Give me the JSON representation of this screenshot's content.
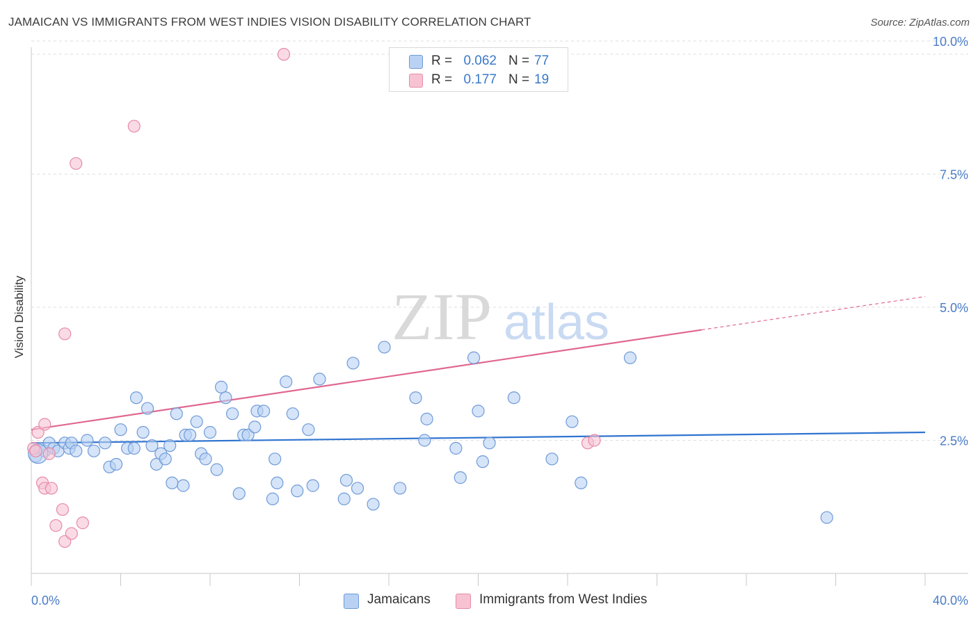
{
  "header": {
    "title": "JAMAICAN VS IMMIGRANTS FROM WEST INDIES VISION DISABILITY CORRELATION CHART",
    "source": "Source: ZipAtlas.com"
  },
  "watermark": {
    "zip": "ZIP",
    "atlas": "atlas"
  },
  "colors": {
    "blue_fill": "#b9d2f3",
    "blue_stroke": "#6f9ad8",
    "blue_line": "#2f74d0",
    "pink_fill": "#f7c3d3",
    "pink_stroke": "#e68aa7",
    "pink_line": "#e0678f",
    "grid": "#dedede",
    "tick_text": "#4a7cc7"
  },
  "legend": {
    "rows": [
      {
        "r_label": "R =",
        "r_value": "0.062",
        "n_label": "N =",
        "n_value": "77"
      },
      {
        "r_label": "R =",
        "r_value": "0.177",
        "n_label": "N =",
        "n_value": "19"
      }
    ]
  },
  "bottom_legend": {
    "series1": "Jamaicans",
    "series2": "Immigrants from West Indies"
  },
  "chart_data": {
    "type": "scatter",
    "title": "JAMAICAN VS IMMIGRANTS FROM WEST INDIES VISION DISABILITY CORRELATION CHART",
    "xlabel": "",
    "ylabel": "Vision Disability",
    "xlim": [
      0,
      40
    ],
    "ylim": [
      0,
      10.5
    ],
    "x_tick_labels": [
      "0.0%",
      "40.0%"
    ],
    "y_ticks": [
      2.5,
      5.0,
      7.5,
      10.0
    ],
    "y_tick_labels": [
      "2.5%",
      "5.0%",
      "7.5%",
      "10.0%"
    ],
    "grid": "horizontal dashed",
    "legend_placement": "top-center",
    "series": [
      {
        "name": "Jamaicans",
        "color": "#6f9ad8",
        "points": [
          [
            0.2,
            2.2
          ],
          [
            0.4,
            2.35
          ],
          [
            0.6,
            2.3
          ],
          [
            0.8,
            2.45
          ],
          [
            1.0,
            2.35
          ],
          [
            1.2,
            2.3
          ],
          [
            1.5,
            2.45
          ],
          [
            1.7,
            2.35
          ],
          [
            1.8,
            2.45
          ],
          [
            2.0,
            2.3
          ],
          [
            2.5,
            2.5
          ],
          [
            2.8,
            2.3
          ],
          [
            3.3,
            2.45
          ],
          [
            3.5,
            2.0
          ],
          [
            3.8,
            2.05
          ],
          [
            4.0,
            2.7
          ],
          [
            4.3,
            2.35
          ],
          [
            4.6,
            2.35
          ],
          [
            4.7,
            3.3
          ],
          [
            5.0,
            2.65
          ],
          [
            5.2,
            3.1
          ],
          [
            5.4,
            2.4
          ],
          [
            5.6,
            2.05
          ],
          [
            5.8,
            2.25
          ],
          [
            6.0,
            2.15
          ],
          [
            6.2,
            2.4
          ],
          [
            6.3,
            1.7
          ],
          [
            6.5,
            3.0
          ],
          [
            6.8,
            1.65
          ],
          [
            6.9,
            2.6
          ],
          [
            7.1,
            2.6
          ],
          [
            7.4,
            2.85
          ],
          [
            7.6,
            2.25
          ],
          [
            7.8,
            2.15
          ],
          [
            8.0,
            2.65
          ],
          [
            8.3,
            1.95
          ],
          [
            8.5,
            3.5
          ],
          [
            8.7,
            3.3
          ],
          [
            9.0,
            3.0
          ],
          [
            9.3,
            1.5
          ],
          [
            9.5,
            2.6
          ],
          [
            9.7,
            2.6
          ],
          [
            10.0,
            2.75
          ],
          [
            10.1,
            3.05
          ],
          [
            10.4,
            3.05
          ],
          [
            10.8,
            1.4
          ],
          [
            10.9,
            2.15
          ],
          [
            11.0,
            1.7
          ],
          [
            11.4,
            3.6
          ],
          [
            11.7,
            3.0
          ],
          [
            11.9,
            1.55
          ],
          [
            12.4,
            2.7
          ],
          [
            12.6,
            1.65
          ],
          [
            12.9,
            3.65
          ],
          [
            14.0,
            1.4
          ],
          [
            14.1,
            1.75
          ],
          [
            14.4,
            3.95
          ],
          [
            14.6,
            1.6
          ],
          [
            15.3,
            1.3
          ],
          [
            15.8,
            4.25
          ],
          [
            16.5,
            1.6
          ],
          [
            17.2,
            3.3
          ],
          [
            17.6,
            2.5
          ],
          [
            17.7,
            2.9
          ],
          [
            19.0,
            2.35
          ],
          [
            19.2,
            1.8
          ],
          [
            19.8,
            4.05
          ],
          [
            20.0,
            3.05
          ],
          [
            20.2,
            2.1
          ],
          [
            20.5,
            2.45
          ],
          [
            21.6,
            3.3
          ],
          [
            23.3,
            2.15
          ],
          [
            24.2,
            2.85
          ],
          [
            24.6,
            1.7
          ],
          [
            26.8,
            4.05
          ],
          [
            35.6,
            1.05
          ],
          [
            0.3,
            2.25
          ]
        ],
        "trend": {
          "x": [
            0,
            40
          ],
          "y": [
            2.45,
            2.65
          ]
        }
      },
      {
        "name": "Immigrants from West Indies",
        "color": "#e68aa7",
        "points": [
          [
            0.1,
            2.35
          ],
          [
            0.2,
            2.3
          ],
          [
            0.3,
            2.65
          ],
          [
            0.5,
            1.7
          ],
          [
            0.6,
            2.8
          ],
          [
            0.6,
            1.6
          ],
          [
            0.8,
            2.25
          ],
          [
            0.9,
            1.6
          ],
          [
            1.1,
            0.9
          ],
          [
            1.4,
            1.2
          ],
          [
            1.5,
            0.6
          ],
          [
            1.5,
            4.5
          ],
          [
            1.8,
            0.75
          ],
          [
            2.0,
            7.7
          ],
          [
            2.3,
            0.95
          ],
          [
            4.6,
            8.4
          ],
          [
            11.3,
            9.75
          ],
          [
            24.9,
            2.45
          ],
          [
            25.2,
            2.5
          ]
        ],
        "trend": {
          "x": [
            0,
            40
          ],
          "y": [
            2.7,
            5.2
          ],
          "solid_until_x": 30.0
        }
      }
    ]
  }
}
